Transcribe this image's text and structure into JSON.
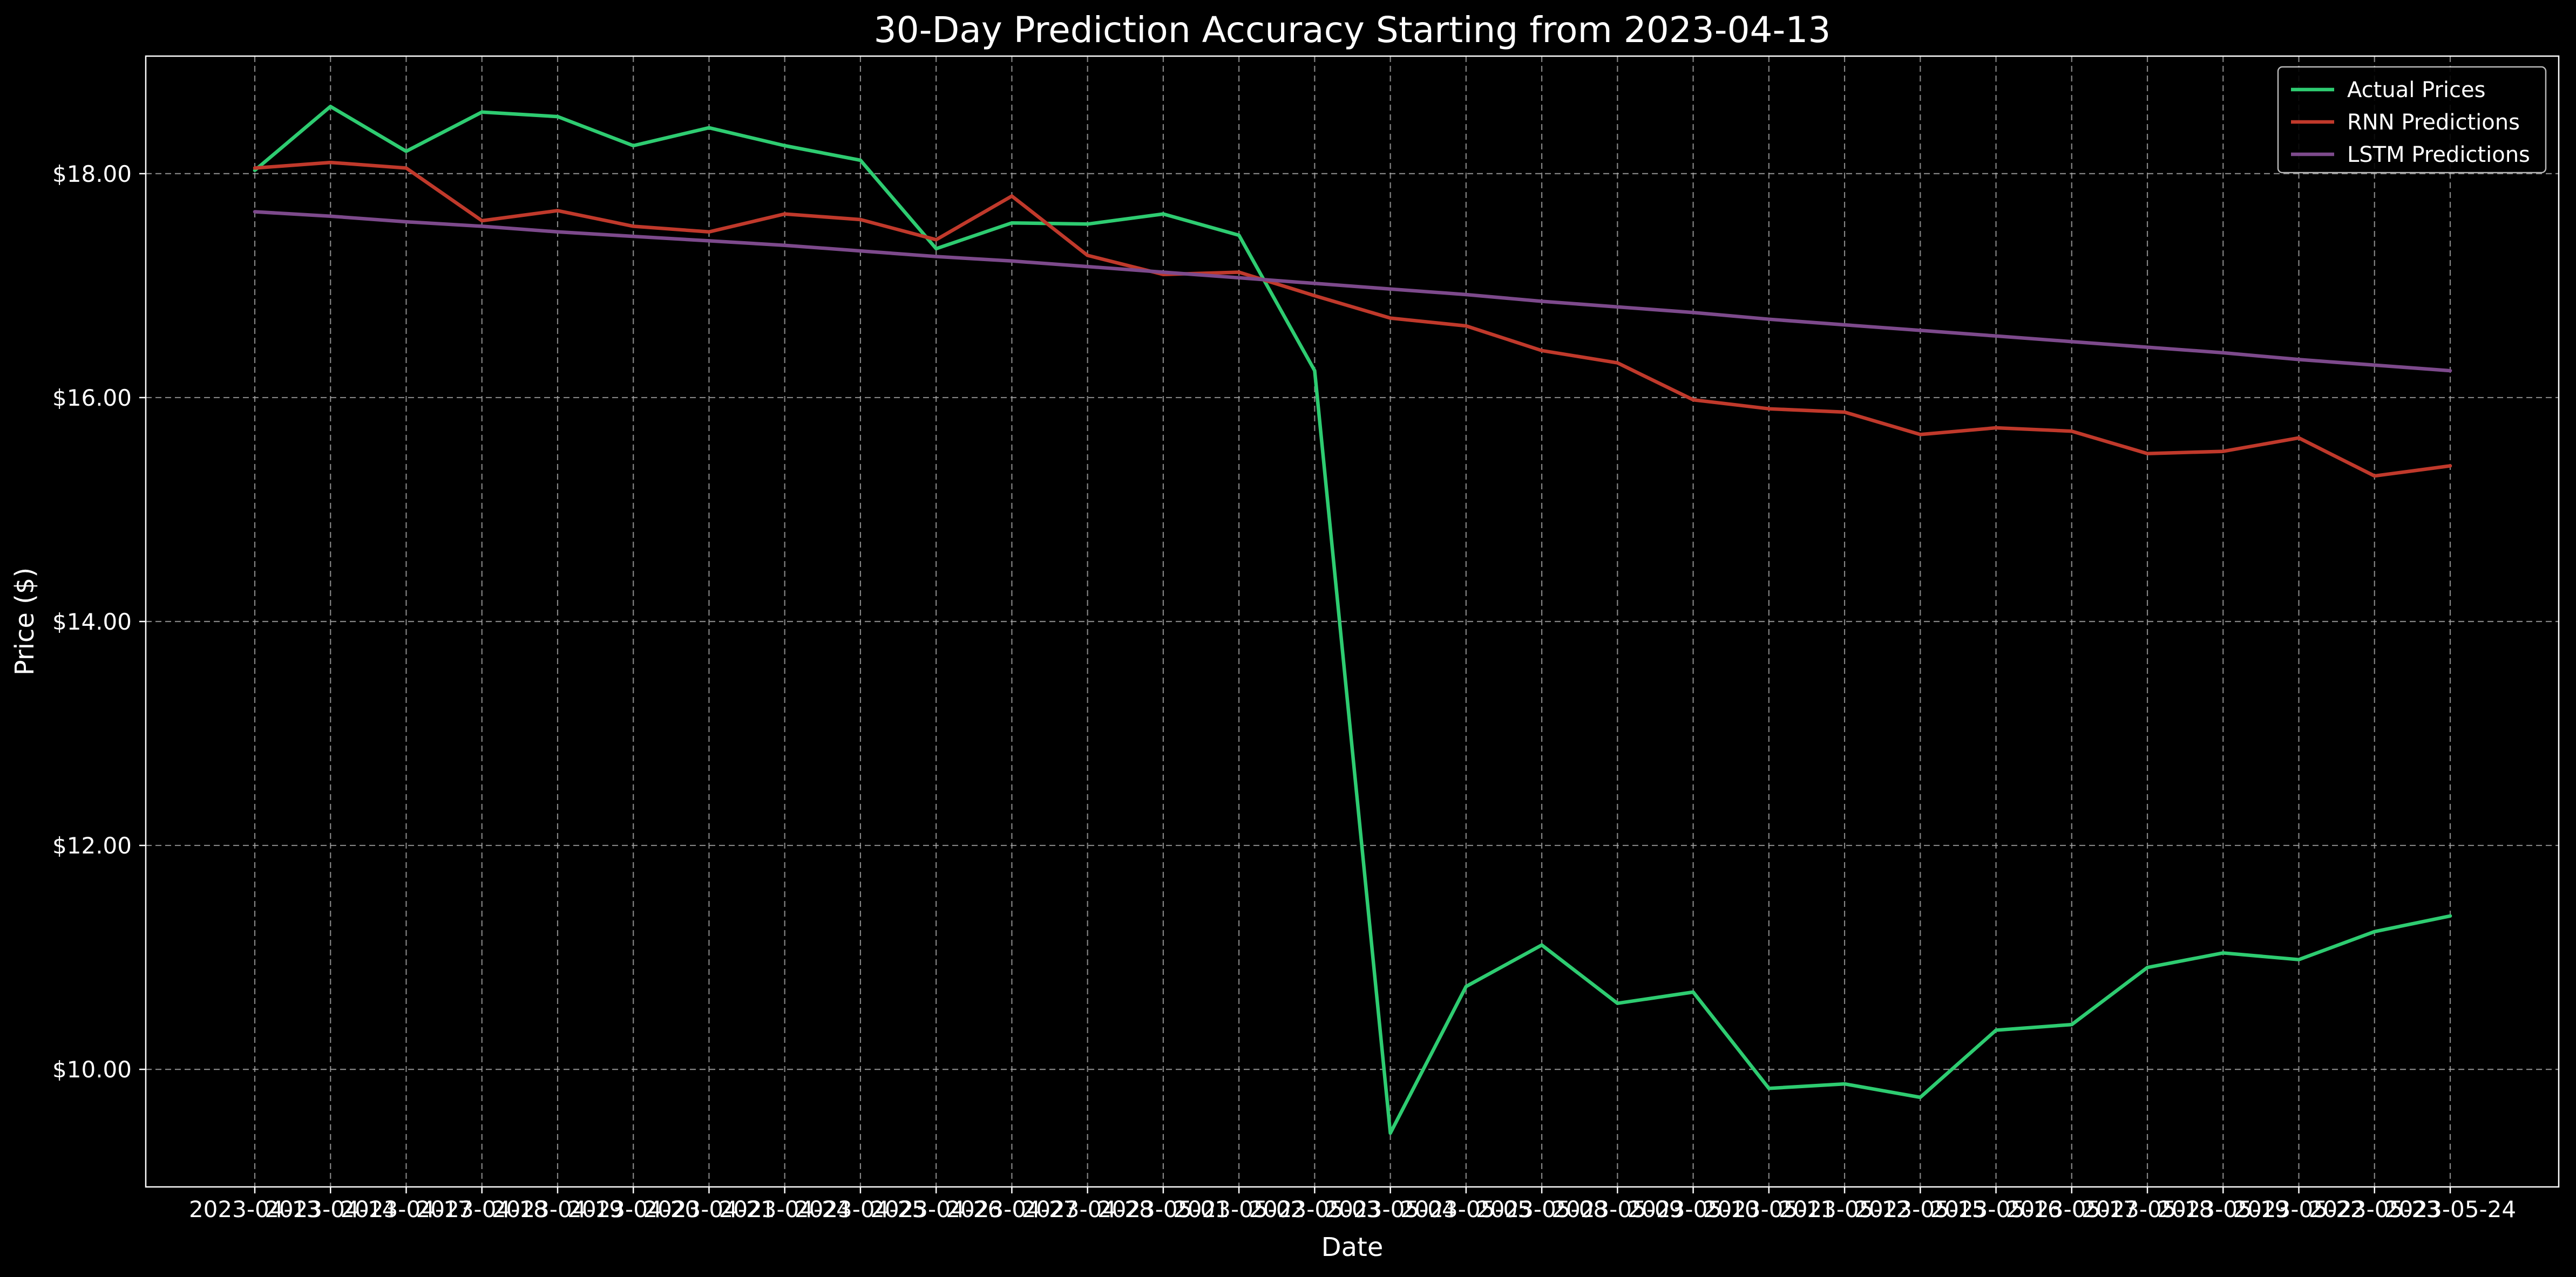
{
  "chart_data": {
    "type": "line",
    "title": "30-Day Prediction Accuracy Starting from 2023-04-13",
    "xlabel": "Date",
    "ylabel": "Price ($)",
    "y_tick_values": [
      10,
      12,
      14,
      16,
      18
    ],
    "y_tick_labels": [
      "$10.00",
      "$12.00",
      "$14.00",
      "$16.00",
      "$18.00"
    ],
    "ylim": [
      8.95,
      19.05
    ],
    "grid": true,
    "legend_position": "top-right",
    "x": [
      "2023-04-13",
      "2023-04-14",
      "2023-04-17",
      "2023-04-18",
      "2023-04-19",
      "2023-04-20",
      "2023-04-21",
      "2023-04-24",
      "2023-04-25",
      "2023-04-26",
      "2023-04-27",
      "2023-04-28",
      "2023-05-01",
      "2023-05-02",
      "2023-05-03",
      "2023-05-04",
      "2023-05-05",
      "2023-05-08",
      "2023-05-09",
      "2023-05-10",
      "2023-05-11",
      "2023-05-12",
      "2023-05-15",
      "2023-05-16",
      "2023-05-17",
      "2023-05-18",
      "2023-05-19",
      "2023-05-22",
      "2023-05-23",
      "2023-05-24"
    ],
    "series": [
      {
        "name": "Actual Prices",
        "color": "#2ecc71",
        "values": [
          18.03,
          18.6,
          18.2,
          18.55,
          18.51,
          18.25,
          18.41,
          18.25,
          18.12,
          17.33,
          17.56,
          17.55,
          17.64,
          17.45,
          16.24,
          9.43,
          10.74,
          11.11,
          10.59,
          10.69,
          9.83,
          9.87,
          9.75,
          10.35,
          10.4,
          10.91,
          11.04,
          10.98,
          11.23,
          11.37
        ]
      },
      {
        "name": "RNN Predictions",
        "color": "#c0392b",
        "values": [
          18.05,
          18.1,
          18.05,
          17.58,
          17.67,
          17.53,
          17.48,
          17.64,
          17.59,
          17.41,
          17.8,
          17.27,
          17.1,
          17.12,
          16.91,
          16.71,
          16.64,
          16.42,
          16.31,
          15.98,
          15.9,
          15.87,
          15.67,
          15.73,
          15.7,
          15.5,
          15.52,
          15.64,
          15.3,
          15.39
        ]
      },
      {
        "name": "LSTM Predictions",
        "color": "#7d4a8c",
        "values": [
          17.66,
          17.62,
          17.57,
          17.53,
          17.48,
          17.44,
          17.4,
          17.36,
          17.31,
          17.26,
          17.22,
          17.17,
          17.12,
          17.07,
          17.02,
          16.97,
          16.92,
          16.86,
          16.81,
          16.76,
          16.7,
          16.65,
          16.6,
          16.55,
          16.5,
          16.45,
          16.4,
          16.34,
          16.29,
          16.24
        ]
      }
    ]
  }
}
